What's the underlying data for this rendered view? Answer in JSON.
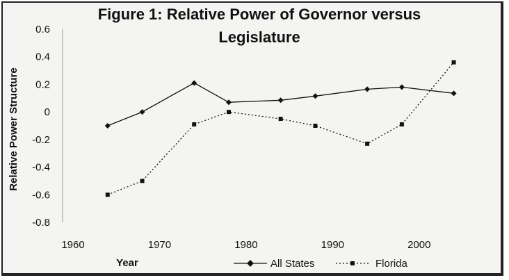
{
  "chart_data": {
    "type": "line",
    "title_lines": [
      "Figure 1: Relative Power of Governor versus",
      "Legislature"
    ],
    "xlabel": "Year",
    "ylabel": "Relative Power Structure",
    "xlim": [
      1960,
      2005
    ],
    "ylim": [
      -0.8,
      0.6
    ],
    "x_ticks": [
      "1960",
      "1970",
      "1980",
      "1990",
      "2000"
    ],
    "y_ticks": [
      "0.6",
      "0.4",
      "0.2",
      "0",
      "-0.2",
      "-0.4",
      "-0.6",
      "-0.8"
    ],
    "legend_position": "bottom",
    "grid": false,
    "series": [
      {
        "name": "All States",
        "style": "solid",
        "color": "#111111",
        "points": [
          [
            1964,
            -0.1
          ],
          [
            1968,
            0.0
          ],
          [
            1974,
            0.21
          ],
          [
            1978,
            0.07
          ],
          [
            1984,
            0.085
          ],
          [
            1988,
            0.115
          ],
          [
            1994,
            0.165
          ],
          [
            1998,
            0.18
          ],
          [
            2004,
            0.135
          ]
        ]
      },
      {
        "name": "Florida",
        "style": "dotted",
        "color": "#111111",
        "points": [
          [
            1964,
            -0.6
          ],
          [
            1968,
            -0.5
          ],
          [
            1974,
            -0.09
          ],
          [
            1978,
            0.0
          ],
          [
            1984,
            -0.05
          ],
          [
            1988,
            -0.1
          ],
          [
            1994,
            -0.23
          ],
          [
            1998,
            -0.09
          ],
          [
            2004,
            0.36
          ]
        ]
      }
    ]
  }
}
